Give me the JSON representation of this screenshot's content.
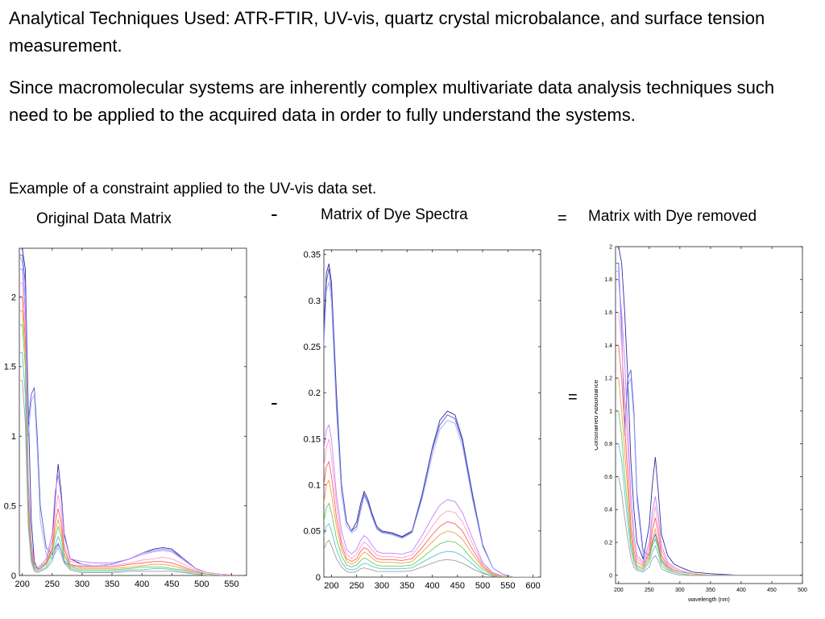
{
  "slide": {
    "heading": "Analytical Techniques Used:  ATR-FTIR, UV-vis, quartz crystal microbalance, and surface tension measurement.",
    "paragraph": "Since macromolecular systems are inherently complex multivariate data analysis techniques such need  to be applied to the acquired data in order to fully understand the systems.",
    "example_caption": "Example of a constraint applied to the UV-vis data set.",
    "labels": {
      "original": "Original Data Matrix",
      "dye": "Matrix of Dye Spectra",
      "removed": "Matrix with Dye removed"
    },
    "operators": {
      "minus": "-",
      "equals": "="
    }
  },
  "colors": {
    "palette": [
      "#2f2f9a",
      "#5a5ac8",
      "#9fa8ff",
      "#c080ff",
      "#ff9cc8",
      "#ff6060",
      "#f0a040",
      "#60d060",
      "#60c0d0",
      "#a0a0a0",
      "#1a1a80",
      "#8080ff"
    ]
  },
  "chart_data": [
    {
      "type": "line",
      "title": "",
      "xlabel": "",
      "ylabel": "",
      "xlim": [
        195,
        575
      ],
      "ylim": [
        0,
        2.35
      ],
      "xticks": [
        "200",
        "250",
        "300",
        "350",
        "400",
        "450",
        "500",
        "550"
      ],
      "yticks": [
        "0",
        "0.5",
        "1",
        "1.5",
        "2"
      ],
      "x": [
        195,
        200,
        205,
        210,
        215,
        220,
        225,
        230,
        240,
        250,
        255,
        260,
        265,
        270,
        280,
        300,
        320,
        350,
        380,
        400,
        420,
        435,
        450,
        470,
        490,
        510,
        530,
        560
      ],
      "series": [
        {
          "values": [
            2.35,
            2.35,
            2.2,
            1.2,
            0.4,
            0.1,
            0.05,
            0.06,
            0.1,
            0.25,
            0.55,
            0.8,
            0.6,
            0.3,
            0.12,
            0.08,
            0.07,
            0.08,
            0.12,
            0.16,
            0.19,
            0.2,
            0.19,
            0.12,
            0.05,
            0.02,
            0.01,
            0.0
          ]
        },
        {
          "values": [
            2.3,
            2.3,
            2.1,
            1.1,
            1.3,
            1.35,
            1.0,
            0.5,
            0.2,
            0.15,
            0.2,
            0.23,
            0.18,
            0.1,
            0.07,
            0.07,
            0.07,
            0.08,
            0.12,
            0.16,
            0.18,
            0.19,
            0.18,
            0.12,
            0.05,
            0.02,
            0.01,
            0.0
          ]
        },
        {
          "values": [
            2.3,
            2.25,
            2.0,
            1.0,
            1.25,
            1.3,
            0.9,
            0.4,
            0.15,
            0.12,
            0.16,
            0.2,
            0.15,
            0.09,
            0.07,
            0.07,
            0.07,
            0.08,
            0.12,
            0.16,
            0.18,
            0.19,
            0.18,
            0.11,
            0.05,
            0.02,
            0.01,
            0.0
          ]
        },
        {
          "values": [
            2.2,
            2.2,
            1.9,
            0.7,
            0.25,
            0.08,
            0.06,
            0.07,
            0.12,
            0.3,
            0.6,
            0.72,
            0.55,
            0.28,
            0.12,
            0.1,
            0.09,
            0.09,
            0.12,
            0.15,
            0.17,
            0.18,
            0.17,
            0.11,
            0.05,
            0.02,
            0.01,
            0.0
          ]
        },
        {
          "values": [
            2.1,
            2.1,
            1.8,
            0.6,
            0.2,
            0.07,
            0.05,
            0.06,
            0.1,
            0.25,
            0.45,
            0.58,
            0.45,
            0.22,
            0.1,
            0.08,
            0.07,
            0.07,
            0.09,
            0.11,
            0.12,
            0.13,
            0.12,
            0.08,
            0.04,
            0.02,
            0.01,
            0.0
          ]
        },
        {
          "values": [
            2.0,
            2.0,
            1.7,
            0.55,
            0.18,
            0.06,
            0.05,
            0.05,
            0.09,
            0.2,
            0.38,
            0.48,
            0.38,
            0.19,
            0.08,
            0.06,
            0.06,
            0.06,
            0.08,
            0.09,
            0.1,
            0.1,
            0.09,
            0.06,
            0.03,
            0.01,
            0.0,
            0.0
          ]
        },
        {
          "values": [
            1.9,
            1.9,
            1.6,
            0.5,
            0.15,
            0.05,
            0.04,
            0.05,
            0.08,
            0.18,
            0.32,
            0.4,
            0.32,
            0.16,
            0.07,
            0.05,
            0.05,
            0.05,
            0.06,
            0.07,
            0.08,
            0.08,
            0.07,
            0.05,
            0.02,
            0.01,
            0.0,
            0.0
          ]
        },
        {
          "values": [
            1.8,
            1.8,
            1.5,
            0.45,
            0.14,
            0.05,
            0.04,
            0.05,
            0.08,
            0.16,
            0.28,
            0.35,
            0.28,
            0.14,
            0.06,
            0.04,
            0.04,
            0.04,
            0.05,
            0.06,
            0.06,
            0.06,
            0.05,
            0.04,
            0.02,
            0.01,
            0.0,
            0.0
          ]
        },
        {
          "values": [
            1.6,
            1.6,
            1.3,
            0.4,
            0.12,
            0.04,
            0.03,
            0.04,
            0.06,
            0.13,
            0.22,
            0.28,
            0.22,
            0.11,
            0.05,
            0.03,
            0.03,
            0.03,
            0.04,
            0.04,
            0.05,
            0.05,
            0.04,
            0.03,
            0.01,
            0.0,
            0.0,
            0.0
          ]
        },
        {
          "values": [
            1.4,
            1.4,
            1.1,
            0.35,
            0.1,
            0.03,
            0.02,
            0.03,
            0.05,
            0.1,
            0.18,
            0.22,
            0.18,
            0.09,
            0.04,
            0.02,
            0.02,
            0.02,
            0.03,
            0.03,
            0.03,
            0.03,
            0.03,
            0.02,
            0.01,
            0.0,
            0.0,
            0.0
          ]
        }
      ]
    },
    {
      "type": "line",
      "title": "",
      "xlabel": "",
      "ylabel": "",
      "xlim": [
        185,
        615
      ],
      "ylim": [
        0,
        0.355
      ],
      "xticks": [
        "200",
        "250",
        "300",
        "350",
        "400",
        "450",
        "500",
        "550",
        "600"
      ],
      "yticks": [
        "0",
        "0.05",
        "0.1",
        "0.15",
        "0.2",
        "0.25",
        "0.3",
        "0.35"
      ],
      "x": [
        185,
        190,
        195,
        200,
        210,
        220,
        230,
        240,
        250,
        258,
        265,
        272,
        280,
        290,
        300,
        320,
        340,
        360,
        380,
        400,
        415,
        430,
        445,
        460,
        480,
        500,
        520,
        540,
        560,
        580,
        615
      ],
      "series": [
        {
          "values": [
            0.27,
            0.33,
            0.34,
            0.32,
            0.2,
            0.1,
            0.06,
            0.05,
            0.06,
            0.08,
            0.093,
            0.085,
            0.07,
            0.055,
            0.05,
            0.048,
            0.044,
            0.05,
            0.09,
            0.14,
            0.17,
            0.18,
            0.176,
            0.15,
            0.09,
            0.035,
            0.01,
            0.003,
            0.0,
            0.0,
            0.0
          ]
        },
        {
          "values": [
            0.26,
            0.32,
            0.335,
            0.31,
            0.19,
            0.1,
            0.06,
            0.05,
            0.055,
            0.075,
            0.09,
            0.082,
            0.068,
            0.053,
            0.049,
            0.047,
            0.043,
            0.049,
            0.088,
            0.138,
            0.165,
            0.176,
            0.172,
            0.147,
            0.087,
            0.034,
            0.01,
            0.003,
            0.0,
            0.0,
            0.0
          ]
        },
        {
          "values": [
            0.25,
            0.31,
            0.32,
            0.3,
            0.18,
            0.09,
            0.055,
            0.048,
            0.052,
            0.072,
            0.088,
            0.08,
            0.066,
            0.052,
            0.048,
            0.046,
            0.042,
            0.048,
            0.085,
            0.132,
            0.16,
            0.17,
            0.167,
            0.142,
            0.084,
            0.033,
            0.01,
            0.003,
            0.0,
            0.0,
            0.0
          ]
        },
        {
          "values": [
            0.14,
            0.16,
            0.165,
            0.15,
            0.09,
            0.05,
            0.03,
            0.025,
            0.03,
            0.04,
            0.045,
            0.042,
            0.035,
            0.028,
            0.026,
            0.026,
            0.025,
            0.028,
            0.045,
            0.065,
            0.078,
            0.084,
            0.082,
            0.07,
            0.042,
            0.016,
            0.005,
            0.001,
            0.0,
            0.0,
            0.0
          ]
        },
        {
          "values": [
            0.12,
            0.14,
            0.15,
            0.13,
            0.08,
            0.04,
            0.025,
            0.02,
            0.025,
            0.033,
            0.038,
            0.035,
            0.03,
            0.024,
            0.022,
            0.022,
            0.021,
            0.024,
            0.038,
            0.055,
            0.066,
            0.072,
            0.07,
            0.06,
            0.036,
            0.014,
            0.004,
            0.001,
            0.0,
            0.0,
            0.0
          ]
        },
        {
          "values": [
            0.1,
            0.12,
            0.125,
            0.11,
            0.065,
            0.035,
            0.02,
            0.017,
            0.02,
            0.028,
            0.032,
            0.03,
            0.025,
            0.02,
            0.019,
            0.019,
            0.018,
            0.02,
            0.032,
            0.046,
            0.055,
            0.06,
            0.058,
            0.05,
            0.03,
            0.012,
            0.003,
            0.001,
            0.0,
            0.0,
            0.0
          ]
        },
        {
          "values": [
            0.08,
            0.1,
            0.105,
            0.09,
            0.055,
            0.03,
            0.017,
            0.014,
            0.017,
            0.023,
            0.027,
            0.025,
            0.021,
            0.017,
            0.016,
            0.016,
            0.015,
            0.017,
            0.027,
            0.038,
            0.046,
            0.05,
            0.048,
            0.041,
            0.025,
            0.01,
            0.003,
            0.001,
            0.0,
            0.0,
            0.0
          ]
        },
        {
          "values": [
            0.06,
            0.075,
            0.08,
            0.07,
            0.042,
            0.023,
            0.013,
            0.011,
            0.013,
            0.018,
            0.021,
            0.019,
            0.016,
            0.013,
            0.012,
            0.012,
            0.012,
            0.013,
            0.021,
            0.03,
            0.036,
            0.039,
            0.038,
            0.032,
            0.019,
            0.008,
            0.002,
            0.0,
            0.0,
            0.0,
            0.0
          ]
        },
        {
          "values": [
            0.045,
            0.055,
            0.058,
            0.05,
            0.03,
            0.016,
            0.009,
            0.008,
            0.009,
            0.013,
            0.015,
            0.014,
            0.012,
            0.01,
            0.009,
            0.009,
            0.009,
            0.01,
            0.016,
            0.022,
            0.026,
            0.028,
            0.027,
            0.023,
            0.014,
            0.005,
            0.001,
            0.0,
            0.0,
            0.0,
            0.0
          ]
        },
        {
          "values": [
            0.03,
            0.037,
            0.04,
            0.034,
            0.02,
            0.011,
            0.006,
            0.005,
            0.006,
            0.009,
            0.01,
            0.009,
            0.008,
            0.006,
            0.006,
            0.006,
            0.006,
            0.007,
            0.011,
            0.015,
            0.018,
            0.019,
            0.018,
            0.015,
            0.009,
            0.004,
            0.001,
            0.0,
            0.0,
            0.0,
            0.0
          ]
        }
      ]
    },
    {
      "type": "line",
      "title": "",
      "xlabel": "wavelength (nm)",
      "ylabel": "Constrained Absorbance",
      "xlim": [
        195,
        500
      ],
      "ylim": [
        -0.05,
        2.0
      ],
      "xticks": [
        "200",
        "250",
        "300",
        "350",
        "400",
        "450",
        "500"
      ],
      "yticks": [
        "0",
        "0.2",
        "0.4",
        "0.6",
        "0.8",
        "1",
        "1.2",
        "1.4",
        "1.6",
        "1.8",
        "2"
      ],
      "x": [
        195,
        200,
        205,
        210,
        215,
        220,
        225,
        230,
        240,
        250,
        255,
        260,
        265,
        270,
        280,
        290,
        300,
        320,
        350,
        400,
        450,
        500
      ],
      "series": [
        {
          "values": [
            2.0,
            2.0,
            1.9,
            1.6,
            1.2,
            0.7,
            0.4,
            0.2,
            0.1,
            0.3,
            0.55,
            0.72,
            0.5,
            0.25,
            0.12,
            0.07,
            0.05,
            0.02,
            0.01,
            0.0,
            0.0,
            0.0
          ]
        },
        {
          "values": [
            1.9,
            1.9,
            1.5,
            0.9,
            1.2,
            1.25,
            1.0,
            0.5,
            0.15,
            0.12,
            0.2,
            0.25,
            0.18,
            0.1,
            0.05,
            0.03,
            0.02,
            0.01,
            0.0,
            0.0,
            0.0,
            0.0
          ]
        },
        {
          "values": [
            1.85,
            1.85,
            1.45,
            0.85,
            1.15,
            1.2,
            0.95,
            0.45,
            0.12,
            0.1,
            0.18,
            0.22,
            0.16,
            0.09,
            0.04,
            0.02,
            0.01,
            0.0,
            0.0,
            0.0,
            0.0,
            0.0
          ]
        },
        {
          "values": [
            1.8,
            1.8,
            1.6,
            1.3,
            0.9,
            0.5,
            0.25,
            0.12,
            0.08,
            0.2,
            0.38,
            0.48,
            0.36,
            0.18,
            0.08,
            0.05,
            0.03,
            0.01,
            0.0,
            0.0,
            0.0,
            0.0
          ]
        },
        {
          "values": [
            1.6,
            1.6,
            1.4,
            1.1,
            0.75,
            0.4,
            0.2,
            0.1,
            0.07,
            0.17,
            0.32,
            0.42,
            0.3,
            0.15,
            0.07,
            0.04,
            0.02,
            0.01,
            0.0,
            0.0,
            0.0,
            0.0
          ]
        },
        {
          "values": [
            1.4,
            1.4,
            1.2,
            0.9,
            0.6,
            0.3,
            0.15,
            0.08,
            0.06,
            0.14,
            0.27,
            0.35,
            0.25,
            0.12,
            0.06,
            0.03,
            0.02,
            0.01,
            0.0,
            0.0,
            0.0,
            0.0
          ]
        },
        {
          "values": [
            1.2,
            1.2,
            1.0,
            0.75,
            0.5,
            0.25,
            0.12,
            0.06,
            0.05,
            0.12,
            0.22,
            0.28,
            0.2,
            0.1,
            0.05,
            0.03,
            0.02,
            0.01,
            0.0,
            0.0,
            0.0,
            0.0
          ]
        },
        {
          "values": [
            1.0,
            1.0,
            0.85,
            0.6,
            0.4,
            0.2,
            0.1,
            0.05,
            0.04,
            0.1,
            0.18,
            0.22,
            0.16,
            0.08,
            0.04,
            0.02,
            0.01,
            0.0,
            0.0,
            0.0,
            0.0,
            0.0
          ]
        },
        {
          "values": [
            0.8,
            0.8,
            0.7,
            0.5,
            0.32,
            0.16,
            0.08,
            0.04,
            0.03,
            0.08,
            0.14,
            0.18,
            0.13,
            0.06,
            0.03,
            0.02,
            0.01,
            0.0,
            0.0,
            0.0,
            0.0,
            0.0
          ]
        },
        {
          "values": [
            0.6,
            0.6,
            0.5,
            0.35,
            0.22,
            0.11,
            0.05,
            0.03,
            0.02,
            0.05,
            0.1,
            0.12,
            0.09,
            0.04,
            0.02,
            0.01,
            0.0,
            0.0,
            0.0,
            0.0,
            0.0,
            0.0
          ]
        }
      ]
    }
  ]
}
